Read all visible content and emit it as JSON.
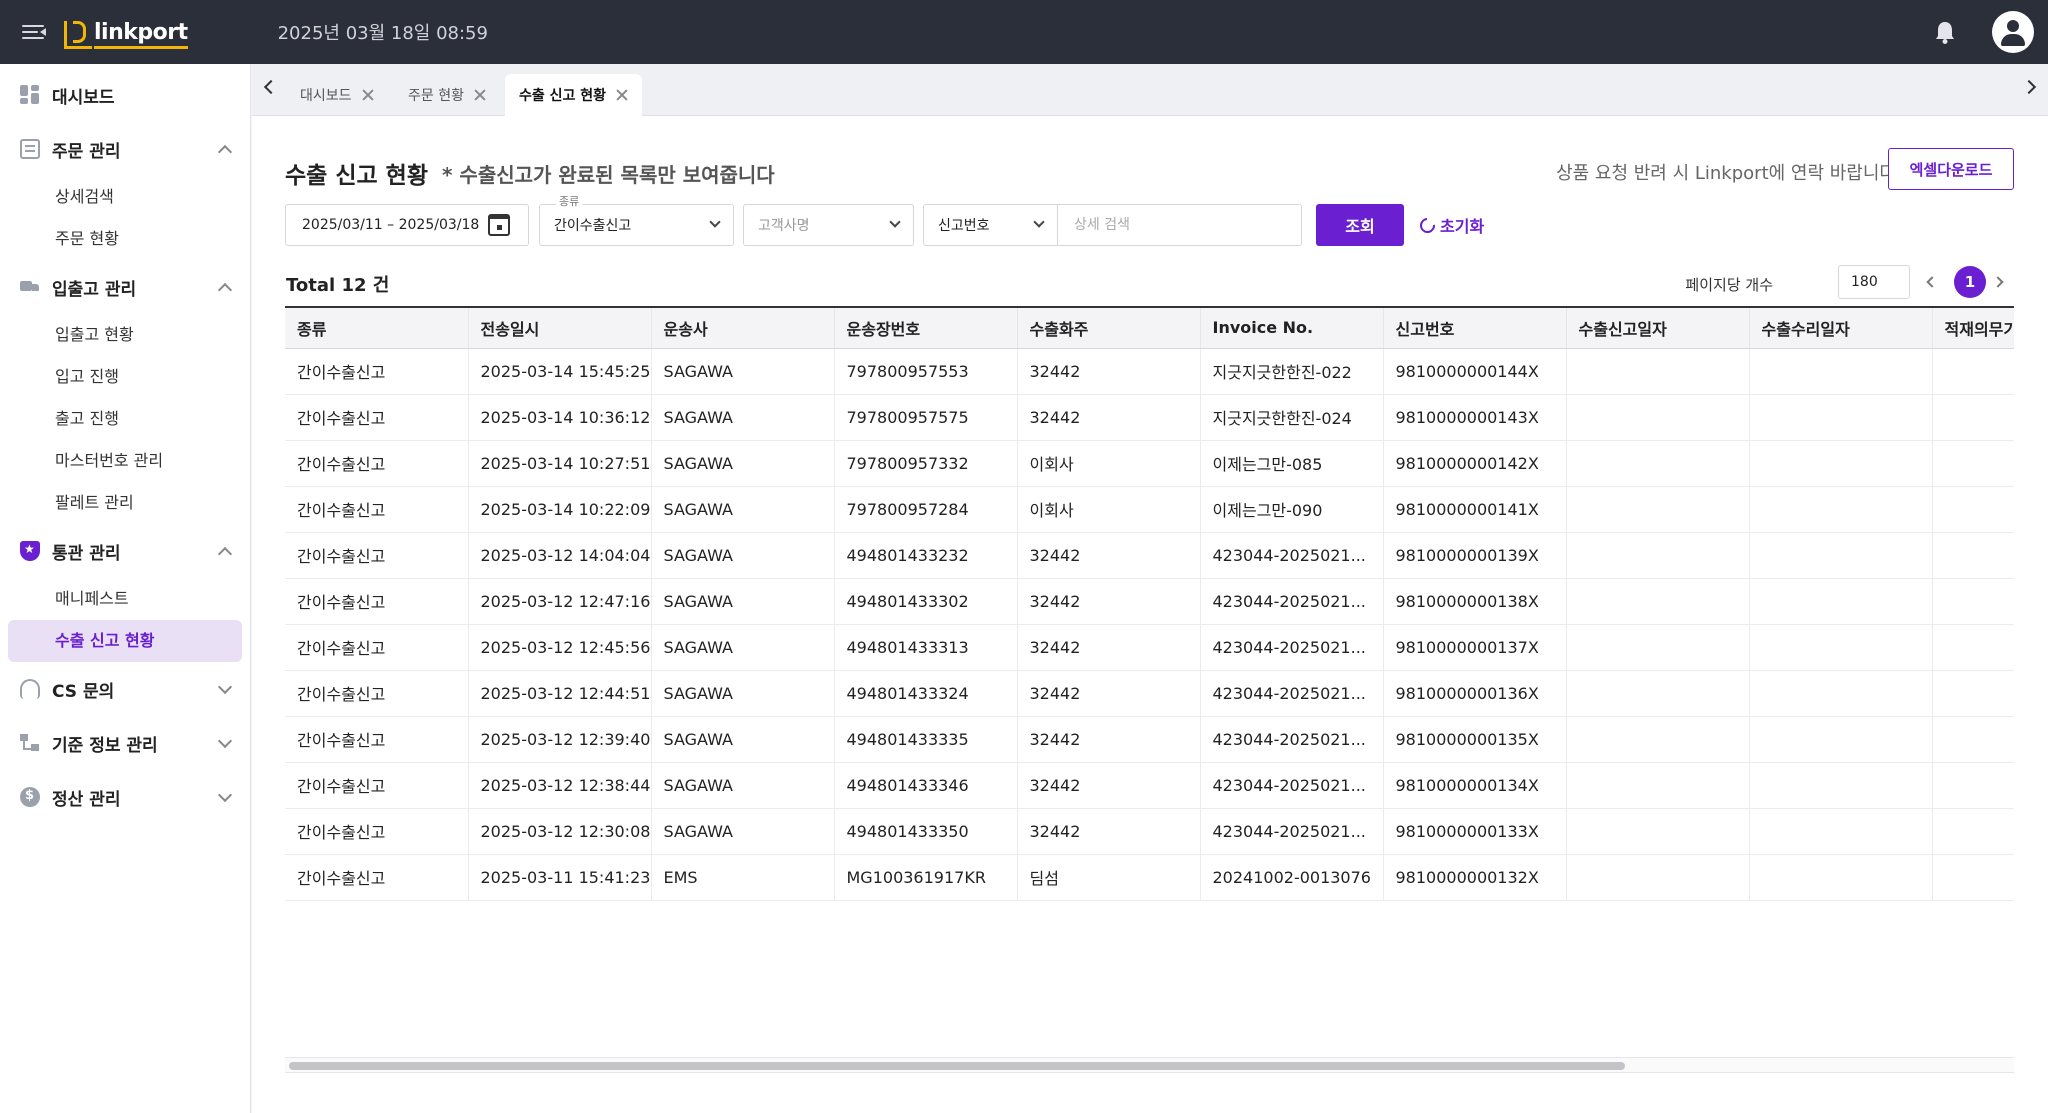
{
  "header": {
    "logo_text": "linkport",
    "datetime": "2025년 03월 18일 08:59"
  },
  "sidebar": {
    "groups": [
      {
        "label": "대시보드",
        "icon": "dashboard-icon",
        "items": []
      },
      {
        "label": "주문 관리",
        "icon": "document-icon",
        "expanded": true,
        "items": [
          "상세검색",
          "주문 현황"
        ]
      },
      {
        "label": "입출고 관리",
        "icon": "truck-icon",
        "expanded": true,
        "items": [
          "입출고 현황",
          "입고 진행",
          "출고 진행",
          "마스터번호 관리",
          "팔레트 관리"
        ]
      },
      {
        "label": "통관 관리",
        "icon": "shield-icon",
        "expanded": true,
        "items": [
          "매니페스트",
          "수출 신고 현황"
        ]
      },
      {
        "label": "CS 문의",
        "icon": "headset-icon",
        "expanded": false,
        "items": []
      },
      {
        "label": "기준 정보 관리",
        "icon": "hierarchy-icon",
        "expanded": false,
        "items": []
      },
      {
        "label": "정산 관리",
        "icon": "dollar-coin-icon",
        "expanded": false,
        "items": []
      }
    ],
    "active_item": "수출 신고 현황"
  },
  "tabs": [
    {
      "label": "대시보드",
      "active": false
    },
    {
      "label": "주문 현황",
      "active": false
    },
    {
      "label": "수출 신고 현황",
      "active": true
    }
  ],
  "page": {
    "title": "수출 신고 현황",
    "note": "* 수출신고가 완료된 목록만 보여줍니다",
    "contact_note": "상품 요청 반려 시 Linkport에 연락 바랍니다",
    "excel_button": "엑셀다운로드"
  },
  "filters": {
    "date_range": "2025/03/11 – 2025/03/18",
    "type_label": "종류",
    "type_value": "간이수출신고",
    "customer_placeholder": "고객사명",
    "search_key": "신고번호",
    "search_placeholder": "상세 검색",
    "query_button": "조회",
    "reset_button": "초기화"
  },
  "summary": {
    "total": "Total 12 건",
    "per_page_label": "페이지당 개수",
    "per_page_value": "180",
    "current_page": "1"
  },
  "table": {
    "columns": [
      "종류",
      "전송일시",
      "운송사",
      "운송장번호",
      "수출화주",
      "Invoice No.",
      "신고번호",
      "수출신고일자",
      "수출수리일자",
      "적재의무기한"
    ],
    "rows": [
      [
        "간이수출신고",
        "2025-03-14 15:45:25",
        "SAGAWA",
        "797800957553",
        "32442",
        "지긋지긋한한진-022",
        "9810000000144X",
        "",
        "",
        ""
      ],
      [
        "간이수출신고",
        "2025-03-14 10:36:12",
        "SAGAWA",
        "797800957575",
        "32442",
        "지긋지긋한한진-024",
        "9810000000143X",
        "",
        "",
        ""
      ],
      [
        "간이수출신고",
        "2025-03-14 10:27:51",
        "SAGAWA",
        "797800957332",
        "이회사",
        "이제는그만-085",
        "9810000000142X",
        "",
        "",
        ""
      ],
      [
        "간이수출신고",
        "2025-03-14 10:22:09",
        "SAGAWA",
        "797800957284",
        "이회사",
        "이제는그만-090",
        "9810000000141X",
        "",
        "",
        ""
      ],
      [
        "간이수출신고",
        "2025-03-12 14:04:04",
        "SAGAWA",
        "494801433232",
        "32442",
        "423044-2025021...",
        "9810000000139X",
        "",
        "",
        ""
      ],
      [
        "간이수출신고",
        "2025-03-12 12:47:16",
        "SAGAWA",
        "494801433302",
        "32442",
        "423044-2025021...",
        "9810000000138X",
        "",
        "",
        ""
      ],
      [
        "간이수출신고",
        "2025-03-12 12:45:56",
        "SAGAWA",
        "494801433313",
        "32442",
        "423044-2025021...",
        "9810000000137X",
        "",
        "",
        ""
      ],
      [
        "간이수출신고",
        "2025-03-12 12:44:51",
        "SAGAWA",
        "494801433324",
        "32442",
        "423044-2025021...",
        "9810000000136X",
        "",
        "",
        ""
      ],
      [
        "간이수출신고",
        "2025-03-12 12:39:40",
        "SAGAWA",
        "494801433335",
        "32442",
        "423044-2025021...",
        "9810000000135X",
        "",
        "",
        ""
      ],
      [
        "간이수출신고",
        "2025-03-12 12:38:44",
        "SAGAWA",
        "494801433346",
        "32442",
        "423044-2025021...",
        "9810000000134X",
        "",
        "",
        ""
      ],
      [
        "간이수출신고",
        "2025-03-12 12:30:08",
        "SAGAWA",
        "494801433350",
        "32442",
        "423044-2025021...",
        "9810000000133X",
        "",
        "",
        ""
      ],
      [
        "간이수출신고",
        "2025-03-11 15:41:23",
        "EMS",
        "MG100361917KR",
        "딤섬",
        "20241002-0013076",
        "9810000000132X",
        "",
        "",
        ""
      ]
    ]
  },
  "colors": {
    "accent": "#6a1fd0",
    "topbar": "#2b2f3a",
    "logo": "#f2b705"
  }
}
